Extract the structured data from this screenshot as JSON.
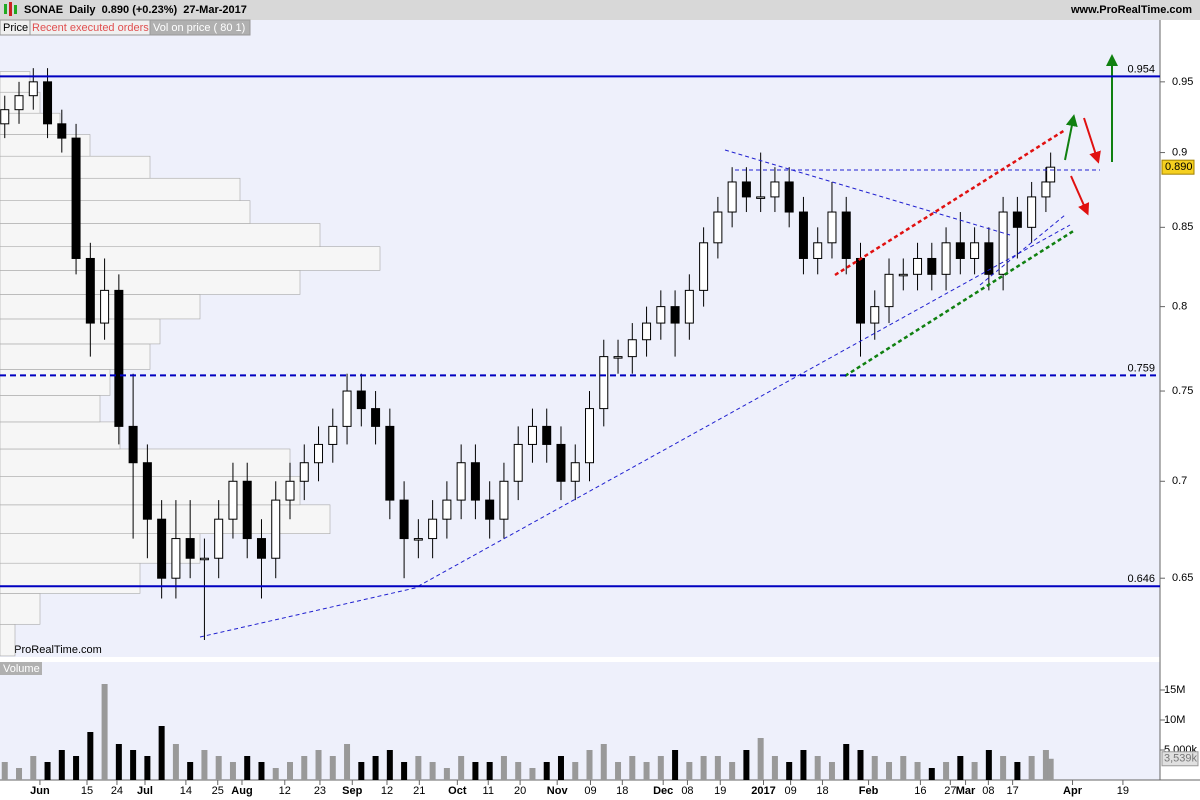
{
  "header": {
    "title": "SONAE  Daily  0.890 (+0.23%)  27-Mar-2017",
    "site": "www.ProRealTime.com",
    "tabs": [
      "Price",
      "Recent executed orders",
      "Vol on price ( 80 1)"
    ],
    "copyright": "© ProRealTime.com"
  },
  "chart_data": [
    {
      "type": "candlestick",
      "log_scale": true,
      "up_color": "#ffffff",
      "down_color": "#000000",
      "x": [
        0,
        3,
        6,
        9,
        12,
        15,
        18,
        21,
        24,
        27,
        30,
        33,
        36,
        39,
        42,
        45,
        48,
        51,
        54,
        57,
        60,
        63,
        66,
        69,
        72,
        75,
        78,
        81,
        84,
        87,
        90,
        93,
        96,
        99,
        102,
        105,
        108,
        111,
        114,
        117,
        120,
        123,
        126,
        129,
        132,
        135,
        138,
        141,
        144,
        147,
        150,
        153,
        156,
        159,
        162,
        165,
        168,
        171,
        174,
        177,
        180,
        183,
        186,
        189,
        192,
        195,
        198,
        201,
        204,
        207,
        210,
        213,
        216,
        219,
        220
      ],
      "open": [
        0.92,
        0.93,
        0.94,
        0.95,
        0.92,
        0.91,
        0.83,
        0.79,
        0.81,
        0.73,
        0.71,
        0.68,
        0.65,
        0.67,
        0.66,
        0.66,
        0.68,
        0.7,
        0.67,
        0.66,
        0.69,
        0.7,
        0.71,
        0.72,
        0.73,
        0.75,
        0.74,
        0.73,
        0.69,
        0.67,
        0.67,
        0.68,
        0.69,
        0.71,
        0.69,
        0.68,
        0.7,
        0.72,
        0.73,
        0.72,
        0.7,
        0.71,
        0.74,
        0.77,
        0.77,
        0.78,
        0.79,
        0.8,
        0.79,
        0.81,
        0.84,
        0.86,
        0.88,
        0.87,
        0.87,
        0.88,
        0.86,
        0.83,
        0.84,
        0.86,
        0.83,
        0.79,
        0.8,
        0.82,
        0.82,
        0.83,
        0.82,
        0.84,
        0.83,
        0.84,
        0.82,
        0.86,
        0.85,
        0.87,
        0.88
      ],
      "high": [
        0.94,
        0.95,
        0.96,
        0.96,
        0.93,
        0.92,
        0.84,
        0.83,
        0.82,
        0.76,
        0.72,
        0.69,
        0.69,
        0.69,
        0.67,
        0.69,
        0.71,
        0.71,
        0.68,
        0.7,
        0.71,
        0.72,
        0.73,
        0.74,
        0.76,
        0.76,
        0.75,
        0.74,
        0.7,
        0.68,
        0.69,
        0.7,
        0.72,
        0.72,
        0.7,
        0.71,
        0.73,
        0.74,
        0.74,
        0.73,
        0.72,
        0.75,
        0.78,
        0.78,
        0.79,
        0.8,
        0.81,
        0.81,
        0.82,
        0.85,
        0.87,
        0.89,
        0.89,
        0.9,
        0.89,
        0.89,
        0.87,
        0.85,
        0.88,
        0.87,
        0.84,
        0.81,
        0.83,
        0.83,
        0.84,
        0.84,
        0.85,
        0.86,
        0.85,
        0.85,
        0.87,
        0.87,
        0.88,
        0.89,
        0.9
      ],
      "low": [
        0.91,
        0.92,
        0.93,
        0.91,
        0.9,
        0.82,
        0.77,
        0.78,
        0.72,
        0.67,
        0.66,
        0.64,
        0.64,
        0.65,
        0.62,
        0.65,
        0.67,
        0.66,
        0.64,
        0.65,
        0.68,
        0.69,
        0.7,
        0.71,
        0.72,
        0.73,
        0.72,
        0.68,
        0.65,
        0.66,
        0.66,
        0.67,
        0.68,
        0.68,
        0.67,
        0.67,
        0.69,
        0.71,
        0.71,
        0.69,
        0.69,
        0.7,
        0.73,
        0.76,
        0.76,
        0.77,
        0.78,
        0.77,
        0.78,
        0.8,
        0.83,
        0.85,
        0.86,
        0.86,
        0.86,
        0.85,
        0.82,
        0.82,
        0.83,
        0.82,
        0.77,
        0.78,
        0.79,
        0.81,
        0.81,
        0.81,
        0.81,
        0.82,
        0.82,
        0.81,
        0.81,
        0.83,
        0.84,
        0.86,
        0.88
      ],
      "close": [
        0.93,
        0.94,
        0.95,
        0.92,
        0.91,
        0.83,
        0.79,
        0.81,
        0.73,
        0.71,
        0.68,
        0.65,
        0.67,
        0.66,
        0.66,
        0.68,
        0.7,
        0.67,
        0.66,
        0.69,
        0.7,
        0.71,
        0.72,
        0.73,
        0.75,
        0.74,
        0.73,
        0.69,
        0.67,
        0.67,
        0.68,
        0.69,
        0.71,
        0.69,
        0.68,
        0.7,
        0.72,
        0.73,
        0.72,
        0.7,
        0.71,
        0.74,
        0.77,
        0.77,
        0.78,
        0.79,
        0.8,
        0.79,
        0.81,
        0.84,
        0.86,
        0.88,
        0.87,
        0.87,
        0.88,
        0.86,
        0.83,
        0.84,
        0.86,
        0.83,
        0.79,
        0.8,
        0.82,
        0.82,
        0.83,
        0.82,
        0.84,
        0.83,
        0.84,
        0.82,
        0.86,
        0.85,
        0.87,
        0.88,
        0.89
      ],
      "xlim": [
        -1,
        243
      ],
      "ylim": [
        0.612,
        0.996
      ],
      "yticks": [
        0.95,
        0.9,
        0.85,
        0.8,
        0.75,
        0.7,
        0.65
      ],
      "levels": [
        0.954,
        0.759,
        0.646
      ],
      "level_styles": [
        "solid",
        "dashed",
        "solid"
      ],
      "level_color": "#0000c0",
      "price_marker": {
        "value": 0.89,
        "label": "0.890"
      },
      "volume_profile": {
        "prices": [
          0.62,
          0.635,
          0.65,
          0.665,
          0.68,
          0.695,
          0.71,
          0.725,
          0.74,
          0.755,
          0.77,
          0.785,
          0.8,
          0.815,
          0.83,
          0.845,
          0.86,
          0.875,
          0.89,
          0.905,
          0.92,
          0.935,
          0.95
        ],
        "volumes": [
          15,
          40,
          140,
          200,
          330,
          300,
          290,
          120,
          100,
          110,
          150,
          160,
          200,
          300,
          380,
          320,
          250,
          240,
          150,
          90,
          60,
          40,
          30
        ]
      }
    },
    {
      "type": "bar",
      "title": "Volume",
      "up_color": "#999999",
      "down_color": "#000000",
      "values": [
        3,
        2,
        4,
        3,
        5,
        4,
        8,
        16,
        6,
        5,
        4,
        9,
        6,
        3,
        5,
        4,
        3,
        4,
        3,
        2,
        3,
        4,
        5,
        4,
        6,
        3,
        4,
        5,
        3,
        4,
        3,
        2,
        4,
        3,
        3,
        4,
        3,
        2,
        3,
        4,
        3,
        5,
        6,
        3,
        4,
        3,
        4,
        5,
        3,
        4,
        4,
        3,
        5,
        7,
        4,
        3,
        5,
        4,
        3,
        6,
        5,
        4,
        3,
        4,
        3,
        2,
        3,
        4,
        3,
        5,
        4,
        3,
        4,
        5,
        3.539
      ],
      "xlim": [
        -1,
        243
      ],
      "ylim": [
        0,
        19.5
      ],
      "yticks": [
        {
          "value": 5,
          "label": "5,000k"
        },
        {
          "value": 10,
          "label": "10M"
        },
        {
          "value": 15,
          "label": "15M"
        }
      ],
      "last_marker": {
        "value": 3.539,
        "label": "3,539k"
      },
      "xticks": [
        {
          "value": 7.4,
          "label": "Jun"
        },
        {
          "value": 17.3,
          "label": "15"
        },
        {
          "value": 23.6,
          "label": "24"
        },
        {
          "value": 29.5,
          "label": "Jul"
        },
        {
          "value": 38.1,
          "label": "14"
        },
        {
          "value": 44.8,
          "label": "25"
        },
        {
          "value": 49.9,
          "label": "Aug"
        },
        {
          "value": 58.9,
          "label": "12"
        },
        {
          "value": 66.3,
          "label": "23"
        },
        {
          "value": 73.1,
          "label": "Sep"
        },
        {
          "value": 80.4,
          "label": "12"
        },
        {
          "value": 87.2,
          "label": "21"
        },
        {
          "value": 95.2,
          "label": "Oct"
        },
        {
          "value": 101.7,
          "label": "11"
        },
        {
          "value": 108.4,
          "label": "20"
        },
        {
          "value": 116.2,
          "label": "Nov"
        },
        {
          "value": 123.2,
          "label": "09"
        },
        {
          "value": 129.9,
          "label": "18"
        },
        {
          "value": 138.5,
          "label": "Dec"
        },
        {
          "value": 143.6,
          "label": "08"
        },
        {
          "value": 150.5,
          "label": "19"
        },
        {
          "value": 159.6,
          "label": "2017"
        },
        {
          "value": 165.3,
          "label": "09"
        },
        {
          "value": 172,
          "label": "18"
        },
        {
          "value": 181.7,
          "label": "Feb"
        },
        {
          "value": 192.6,
          "label": "16"
        },
        {
          "value": 198.9,
          "label": "27"
        },
        {
          "value": 202.1,
          "label": "Mar"
        },
        {
          "value": 206.9,
          "label": "08"
        },
        {
          "value": 212,
          "label": "17"
        },
        {
          "value": 224.6,
          "label": "Apr"
        },
        {
          "value": 235.2,
          "label": "19"
        }
      ]
    }
  ]
}
